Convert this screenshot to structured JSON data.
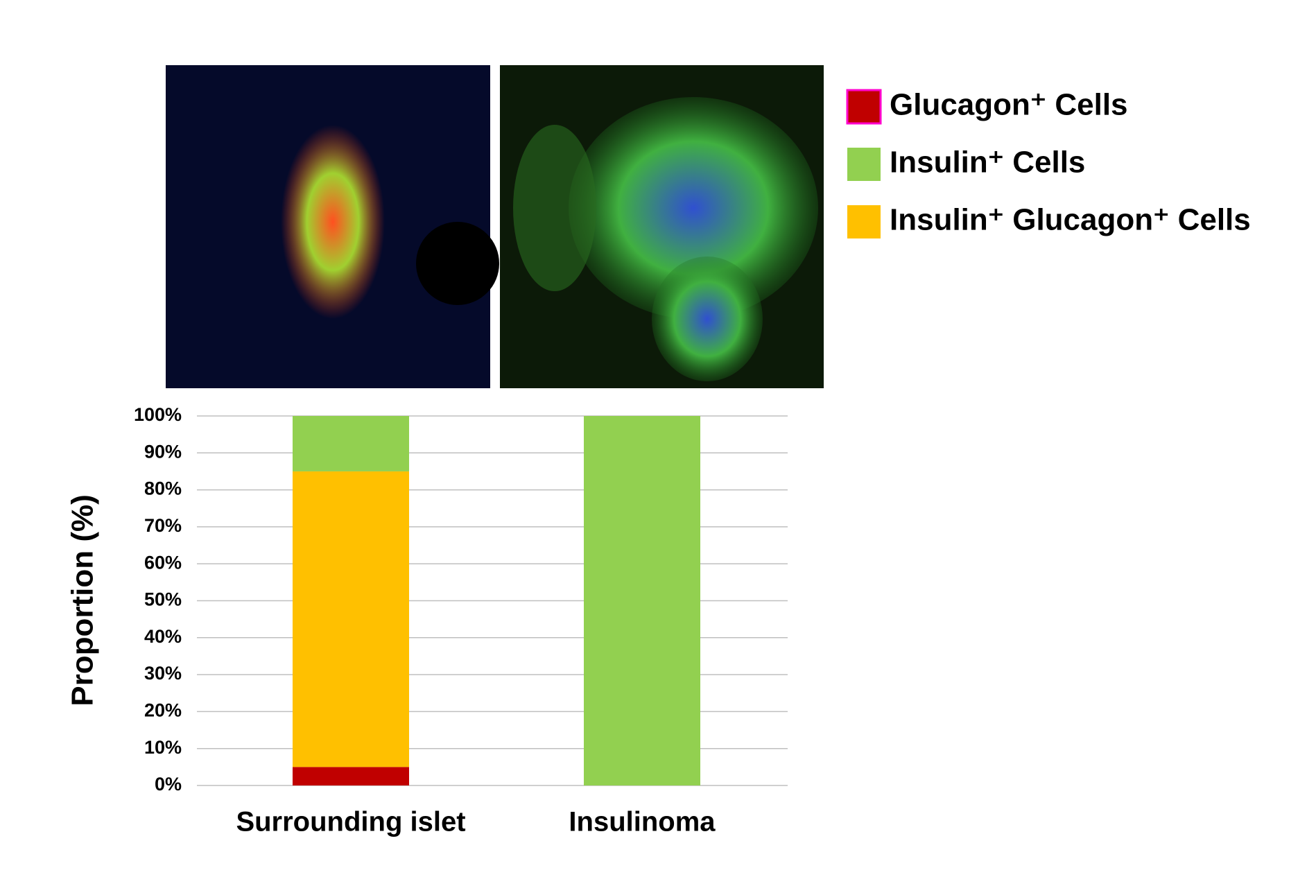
{
  "chart_data": {
    "type": "stacked_bar",
    "ylabel": "Proportion (%)",
    "categories": [
      "Surrounding islet",
      "Insulinoma"
    ],
    "series": [
      {
        "name": "Glucagon⁺ Cells",
        "color": "#c00000",
        "values": [
          5,
          0
        ]
      },
      {
        "name": "Insulin⁺ Cells",
        "color": "#92d050",
        "values": [
          15,
          100
        ]
      },
      {
        "name": "Insulin⁺ Glucagon⁺ Cells",
        "color": "#ffc000",
        "values": [
          80,
          0
        ]
      }
    ],
    "ylim": [
      0,
      100
    ],
    "yticks": [
      {
        "value": 0,
        "label": "0%"
      },
      {
        "value": 10,
        "label": "10%"
      },
      {
        "value": 20,
        "label": "20%"
      },
      {
        "value": 30,
        "label": "30%"
      },
      {
        "value": 40,
        "label": "40%"
      },
      {
        "value": 50,
        "label": "50%"
      },
      {
        "value": 60,
        "label": "60%"
      },
      {
        "value": 70,
        "label": "70%"
      },
      {
        "value": 80,
        "label": "80%"
      },
      {
        "value": 90,
        "label": "90%"
      },
      {
        "value": 100,
        "label": "100%"
      }
    ],
    "grid": true,
    "legend": "top-right"
  }
}
